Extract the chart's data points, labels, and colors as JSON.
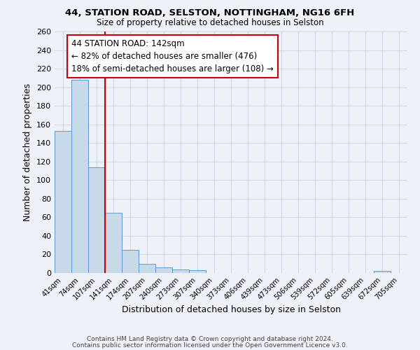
{
  "title_line1": "44, STATION ROAD, SELSTON, NOTTINGHAM, NG16 6FH",
  "title_line2": "Size of property relative to detached houses in Selston",
  "xlabel": "Distribution of detached houses by size in Selston",
  "ylabel": "Number of detached properties",
  "bar_labels": [
    "41sqm",
    "74sqm",
    "107sqm",
    "141sqm",
    "174sqm",
    "207sqm",
    "240sqm",
    "273sqm",
    "307sqm",
    "340sqm",
    "373sqm",
    "406sqm",
    "439sqm",
    "473sqm",
    "506sqm",
    "539sqm",
    "572sqm",
    "605sqm",
    "639sqm",
    "672sqm",
    "705sqm"
  ],
  "bar_values": [
    153,
    208,
    114,
    65,
    25,
    10,
    6,
    4,
    3,
    0,
    0,
    0,
    0,
    0,
    0,
    0,
    0,
    0,
    0,
    2,
    0
  ],
  "bar_color": "#c8d9e8",
  "bar_edge_color": "#5b9bd5",
  "grid_color": "#d0d8e8",
  "background_color": "#eef2f8",
  "vline_x": 2.5,
  "vline_color": "#cc0000",
  "annotation_text": "44 STATION ROAD: 142sqm\n← 82% of detached houses are smaller (476)\n18% of semi-detached houses are larger (108) →",
  "annotation_box_color": "#ffffff",
  "annotation_box_edge": "#cc0000",
  "ylim": [
    0,
    260
  ],
  "yticks": [
    0,
    20,
    40,
    60,
    80,
    100,
    120,
    140,
    160,
    180,
    200,
    220,
    240,
    260
  ],
  "footnote1": "Contains HM Land Registry data © Crown copyright and database right 2024.",
  "footnote2": "Contains public sector information licensed under the Open Government Licence v3.0."
}
